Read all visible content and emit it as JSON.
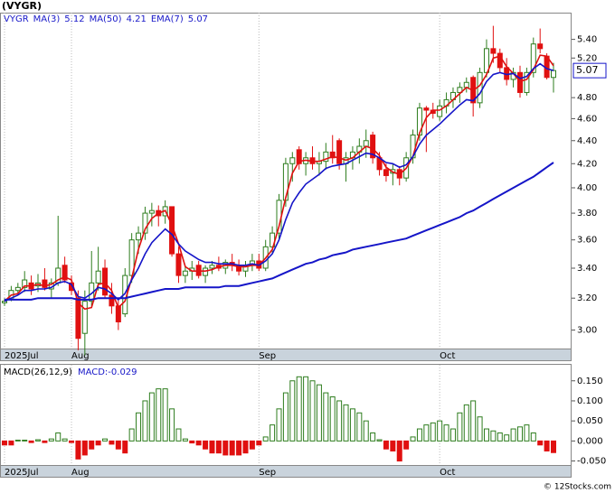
{
  "chart_data": [
    {
      "type": "candlestick",
      "title": "(VYGR)",
      "name": "VYGR",
      "log_scale": true,
      "ylim": [
        2.89,
        5.7
      ],
      "yticks": [
        {
          "value": 3.0,
          "label": "3.00"
        },
        {
          "value": 3.2,
          "label": "3.20"
        },
        {
          "value": 3.4,
          "label": "3.40"
        },
        {
          "value": 3.6,
          "label": "3.60"
        },
        {
          "value": 3.8,
          "label": "3.80"
        },
        {
          "value": 4.0,
          "label": "4.00"
        },
        {
          "value": 4.2,
          "label": "4.20"
        },
        {
          "value": 4.4,
          "label": "4.40"
        },
        {
          "value": 4.6,
          "label": "4.60"
        },
        {
          "value": 4.8,
          "label": "4.80"
        },
        {
          "value": 5.2,
          "label": "5.20"
        },
        {
          "value": 5.4,
          "label": "5.40"
        }
      ],
      "last_value": 5.07,
      "up_color": "#2e7d1e",
      "down_color": "#e01010",
      "categories": [
        "2025Jul",
        null,
        null,
        null,
        null,
        null,
        null,
        null,
        null,
        null,
        "Aug",
        null,
        null,
        null,
        null,
        null,
        null,
        null,
        null,
        null,
        null,
        null,
        null,
        null,
        null,
        null,
        null,
        null,
        null,
        null,
        null,
        null,
        null,
        null,
        null,
        null,
        null,
        null,
        "Sep",
        null,
        null,
        null,
        null,
        null,
        null,
        null,
        null,
        null,
        null,
        null,
        null,
        null,
        null,
        null,
        null,
        null,
        null,
        null,
        null,
        null,
        null,
        null,
        null,
        null,
        null,
        "Oct",
        null,
        null,
        null,
        null,
        null,
        null,
        null,
        null,
        null,
        null,
        null,
        null,
        null,
        null,
        null,
        null,
        null
      ],
      "ohlc": [
        [
          3.17,
          3.2,
          3.15,
          3.18
        ],
        [
          3.2,
          3.28,
          3.18,
          3.25
        ],
        [
          3.25,
          3.3,
          3.22,
          3.27
        ],
        [
          3.27,
          3.38,
          3.24,
          3.32
        ],
        [
          3.3,
          3.35,
          3.22,
          3.26
        ],
        [
          3.28,
          3.36,
          3.24,
          3.3
        ],
        [
          3.32,
          3.4,
          3.25,
          3.27
        ],
        [
          3.26,
          3.33,
          3.2,
          3.3
        ],
        [
          3.3,
          3.78,
          3.28,
          3.4
        ],
        [
          3.42,
          3.48,
          3.3,
          3.32
        ],
        [
          3.3,
          3.35,
          3.22,
          3.25
        ],
        [
          3.2,
          3.25,
          2.88,
          2.95
        ],
        [
          2.98,
          3.25,
          2.85,
          3.18
        ],
        [
          3.18,
          3.52,
          3.15,
          3.3
        ],
        [
          3.3,
          3.55,
          3.25,
          3.38
        ],
        [
          3.4,
          3.46,
          3.2,
          3.22
        ],
        [
          3.22,
          3.3,
          3.1,
          3.15
        ],
        [
          3.15,
          3.2,
          3.0,
          3.05
        ],
        [
          3.1,
          3.4,
          3.08,
          3.35
        ],
        [
          3.35,
          3.65,
          3.3,
          3.6
        ],
        [
          3.6,
          3.7,
          3.5,
          3.65
        ],
        [
          3.65,
          3.85,
          3.6,
          3.8
        ],
        [
          3.8,
          3.88,
          3.7,
          3.82
        ],
        [
          3.82,
          3.86,
          3.7,
          3.78
        ],
        [
          3.78,
          3.9,
          3.72,
          3.85
        ],
        [
          3.85,
          3.85,
          3.48,
          3.5
        ],
        [
          3.5,
          3.55,
          3.3,
          3.35
        ],
        [
          3.35,
          3.42,
          3.3,
          3.38
        ],
        [
          3.38,
          3.45,
          3.32,
          3.4
        ],
        [
          3.42,
          3.45,
          3.33,
          3.35
        ],
        [
          3.35,
          3.42,
          3.3,
          3.4
        ],
        [
          3.4,
          3.45,
          3.36,
          3.42
        ],
        [
          3.42,
          3.48,
          3.38,
          3.4
        ],
        [
          3.4,
          3.46,
          3.36,
          3.44
        ],
        [
          3.44,
          3.5,
          3.38,
          3.42
        ],
        [
          3.42,
          3.46,
          3.35,
          3.38
        ],
        [
          3.38,
          3.45,
          3.34,
          3.42
        ],
        [
          3.42,
          3.5,
          3.38,
          3.45
        ],
        [
          3.45,
          3.5,
          3.38,
          3.4
        ],
        [
          3.4,
          3.6,
          3.38,
          3.55
        ],
        [
          3.55,
          3.7,
          3.5,
          3.65
        ],
        [
          3.65,
          3.95,
          3.6,
          3.9
        ],
        [
          3.9,
          4.25,
          3.85,
          4.2
        ],
        [
          4.2,
          4.3,
          4.05,
          4.25
        ],
        [
          4.32,
          4.35,
          4.15,
          4.2
        ],
        [
          4.2,
          4.3,
          4.1,
          4.25
        ],
        [
          4.25,
          4.35,
          4.15,
          4.2
        ],
        [
          4.2,
          4.3,
          4.1,
          4.22
        ],
        [
          4.22,
          4.38,
          4.15,
          4.3
        ],
        [
          4.3,
          4.45,
          4.2,
          4.25
        ],
        [
          4.4,
          4.42,
          4.15,
          4.2
        ],
        [
          4.2,
          4.3,
          4.05,
          4.25
        ],
        [
          4.25,
          4.35,
          4.15,
          4.3
        ],
        [
          4.3,
          4.42,
          4.2,
          4.35
        ],
        [
          4.35,
          4.5,
          4.25,
          4.4
        ],
        [
          4.45,
          4.48,
          4.2,
          4.25
        ],
        [
          4.25,
          4.3,
          4.1,
          4.15
        ],
        [
          4.15,
          4.2,
          4.05,
          4.1
        ],
        [
          4.12,
          4.2,
          4.02,
          4.15
        ],
        [
          4.15,
          4.18,
          4.02,
          4.08
        ],
        [
          4.08,
          4.3,
          4.05,
          4.25
        ],
        [
          4.25,
          4.5,
          4.2,
          4.45
        ],
        [
          4.45,
          4.75,
          4.4,
          4.7
        ],
        [
          4.7,
          4.72,
          4.3,
          4.68
        ],
        [
          4.68,
          4.75,
          4.6,
          4.65
        ],
        [
          4.62,
          4.78,
          4.58,
          4.72
        ],
        [
          4.72,
          4.85,
          4.65,
          4.78
        ],
        [
          4.78,
          4.9,
          4.7,
          4.85
        ],
        [
          4.85,
          4.95,
          4.75,
          4.9
        ],
        [
          4.9,
          5.0,
          4.85,
          4.95
        ],
        [
          5.0,
          5.02,
          4.62,
          4.75
        ],
        [
          4.75,
          5.1,
          4.7,
          5.05
        ],
        [
          5.05,
          5.4,
          5.0,
          5.3
        ],
        [
          5.3,
          5.55,
          5.15,
          5.25
        ],
        [
          5.25,
          5.3,
          5.05,
          5.1
        ],
        [
          5.1,
          5.2,
          4.92,
          4.98
        ],
        [
          4.98,
          5.1,
          4.9,
          5.05
        ],
        [
          5.05,
          5.12,
          4.8,
          4.85
        ],
        [
          4.85,
          5.1,
          4.82,
          5.05
        ],
        [
          5.05,
          5.42,
          5.0,
          5.35
        ],
        [
          5.35,
          5.52,
          5.25,
          5.3
        ],
        [
          5.22,
          5.25,
          4.98,
          5.0
        ],
        [
          5.0,
          5.15,
          4.85,
          5.07
        ]
      ],
      "lines": [
        {
          "name": "MA(3)",
          "legend_value": 5.12,
          "color": "#e01010",
          "width": 1.6,
          "values": [
            3.18,
            3.22,
            3.23,
            3.28,
            3.28,
            3.29,
            3.28,
            3.29,
            3.32,
            3.34,
            3.32,
            3.17,
            3.13,
            3.14,
            3.29,
            3.3,
            3.25,
            3.14,
            3.18,
            3.33,
            3.53,
            3.68,
            3.76,
            3.8,
            3.82,
            3.71,
            3.57,
            3.41,
            3.38,
            3.38,
            3.38,
            3.39,
            3.41,
            3.42,
            3.42,
            3.41,
            3.41,
            3.42,
            3.42,
            3.47,
            3.53,
            3.7,
            3.92,
            4.12,
            4.22,
            4.23,
            4.22,
            4.22,
            4.24,
            4.26,
            4.25,
            4.23,
            4.25,
            4.3,
            4.35,
            4.33,
            4.27,
            4.17,
            4.13,
            4.11,
            4.16,
            4.26,
            4.47,
            4.61,
            4.68,
            4.68,
            4.72,
            4.78,
            4.84,
            4.9,
            4.87,
            4.92,
            5.03,
            5.2,
            5.22,
            5.11,
            5.04,
            4.96,
            4.98,
            5.08,
            5.23,
            5.22,
            5.12
          ]
        },
        {
          "name": "MA(50)",
          "legend_value": 4.21,
          "color": "#1515c8",
          "width": 2,
          "values": [
            3.19,
            3.19,
            3.19,
            3.19,
            3.19,
            3.2,
            3.2,
            3.2,
            3.2,
            3.2,
            3.2,
            3.19,
            3.19,
            3.19,
            3.2,
            3.2,
            3.2,
            3.2,
            3.2,
            3.21,
            3.22,
            3.23,
            3.24,
            3.25,
            3.26,
            3.26,
            3.26,
            3.27,
            3.27,
            3.27,
            3.27,
            3.27,
            3.27,
            3.28,
            3.28,
            3.28,
            3.29,
            3.3,
            3.31,
            3.32,
            3.33,
            3.35,
            3.37,
            3.39,
            3.41,
            3.43,
            3.44,
            3.46,
            3.47,
            3.49,
            3.5,
            3.51,
            3.53,
            3.54,
            3.55,
            3.56,
            3.57,
            3.58,
            3.59,
            3.6,
            3.61,
            3.63,
            3.65,
            3.67,
            3.69,
            3.71,
            3.73,
            3.75,
            3.77,
            3.8,
            3.82,
            3.85,
            3.88,
            3.91,
            3.94,
            3.97,
            4.0,
            4.03,
            4.06,
            4.09,
            4.13,
            4.17,
            4.21
          ]
        },
        {
          "name": "EMA(7)",
          "legend_value": 5.07,
          "color": "#1515c8",
          "width": 1.6,
          "values": [
            3.18,
            3.2,
            3.22,
            3.25,
            3.25,
            3.26,
            3.26,
            3.27,
            3.3,
            3.31,
            3.29,
            3.21,
            3.2,
            3.23,
            3.27,
            3.26,
            3.23,
            3.19,
            3.23,
            3.32,
            3.4,
            3.5,
            3.58,
            3.63,
            3.68,
            3.64,
            3.57,
            3.52,
            3.49,
            3.46,
            3.44,
            3.44,
            3.43,
            3.43,
            3.43,
            3.42,
            3.42,
            3.43,
            3.42,
            3.45,
            3.5,
            3.6,
            3.75,
            3.88,
            3.96,
            4.03,
            4.07,
            4.11,
            4.16,
            4.18,
            4.19,
            4.2,
            4.23,
            4.26,
            4.29,
            4.28,
            4.25,
            4.21,
            4.2,
            4.17,
            4.19,
            4.26,
            4.37,
            4.45,
            4.5,
            4.55,
            4.61,
            4.67,
            4.73,
            4.78,
            4.77,
            4.84,
            4.96,
            5.03,
            5.05,
            5.03,
            5.04,
            4.99,
            5.01,
            5.09,
            5.14,
            5.09,
            5.07
          ]
        }
      ]
    },
    {
      "type": "bar",
      "title": "MACD(26,12,9)",
      "subtitle": "MACD:-0.029",
      "ylim": [
        -0.06,
        0.19
      ],
      "yticks": [
        {
          "value": -0.05,
          "label": "-0.050"
        },
        {
          "value": 0,
          "label": "0.000"
        },
        {
          "value": 0.05,
          "label": "0.050"
        },
        {
          "value": 0.1,
          "label": "0.100"
        },
        {
          "value": 0.15,
          "label": "0.150"
        }
      ],
      "up_color": "#2e7d1e",
      "down_color": "#e01010",
      "categories": [
        "2025Jul",
        null,
        null,
        null,
        null,
        null,
        null,
        null,
        null,
        null,
        "Aug",
        null,
        null,
        null,
        null,
        null,
        null,
        null,
        null,
        null,
        null,
        null,
        null,
        null,
        null,
        null,
        null,
        null,
        null,
        null,
        null,
        null,
        null,
        null,
        null,
        null,
        null,
        null,
        "Sep",
        null,
        null,
        null,
        null,
        null,
        null,
        null,
        null,
        null,
        null,
        null,
        null,
        null,
        null,
        null,
        null,
        null,
        null,
        null,
        null,
        null,
        null,
        null,
        null,
        null,
        null,
        "Oct",
        null,
        null,
        null,
        null,
        null,
        null,
        null,
        null,
        null,
        null,
        null,
        null,
        null,
        null,
        null,
        null,
        null
      ],
      "values": [
        -0.01,
        -0.01,
        0.002,
        0.002,
        -0.004,
        0.003,
        -0.004,
        0.005,
        0.02,
        0.005,
        -0.004,
        -0.045,
        -0.035,
        -0.02,
        -0.01,
        0.005,
        -0.008,
        -0.02,
        -0.03,
        0.03,
        0.07,
        0.1,
        0.12,
        0.13,
        0.13,
        0.08,
        0.03,
        0.005,
        -0.005,
        -0.01,
        -0.02,
        -0.03,
        -0.03,
        -0.035,
        -0.035,
        -0.035,
        -0.03,
        -0.02,
        -0.01,
        0.01,
        0.04,
        0.08,
        0.12,
        0.15,
        0.16,
        0.16,
        0.15,
        0.14,
        0.12,
        0.11,
        0.1,
        0.09,
        0.08,
        0.07,
        0.05,
        0.02,
        0.003,
        -0.02,
        -0.025,
        -0.05,
        -0.02,
        0.01,
        0.03,
        0.04,
        0.045,
        0.05,
        0.04,
        0.03,
        0.07,
        0.09,
        0.1,
        0.06,
        0.03,
        0.025,
        0.02,
        0.015,
        0.03,
        0.035,
        0.04,
        0.02,
        -0.01,
        -0.025,
        -0.029
      ]
    }
  ],
  "footer": "© 12Stocks.com"
}
